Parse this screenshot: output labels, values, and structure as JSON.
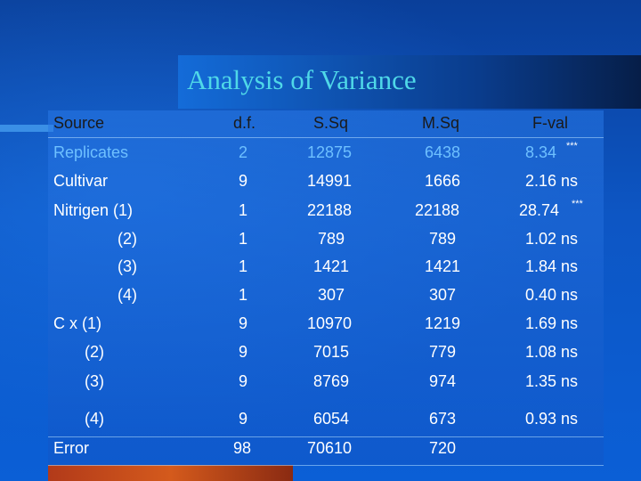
{
  "title": "Analysis of Variance",
  "columns": [
    "Source",
    "d.f.",
    "S.Sq",
    "M.Sq",
    "F-val"
  ],
  "rows": [
    {
      "source": "Replicates",
      "df": "2",
      "ss": "12875",
      "ms": "6438",
      "f": "8.34",
      "sig": "***"
    },
    {
      "source": "Cultivar",
      "df": "9",
      "ss": "14991",
      "ms": "1666",
      "f": "2.16 ns",
      "sig": ""
    },
    {
      "source": "Nitrigen (1)",
      "df": "1",
      "ss": "22188",
      "ms": "22188",
      "f": "28.74",
      "sig": "***"
    },
    {
      "source": "(2)",
      "df": "1",
      "ss": "789",
      "ms": "789",
      "f": "1.02 ns",
      "sig": ""
    },
    {
      "source": "(3)",
      "df": "1",
      "ss": "1421",
      "ms": "1421",
      "f": "1.84 ns",
      "sig": ""
    },
    {
      "source": "(4)",
      "df": "1",
      "ss": "307",
      "ms": "307",
      "f": "0.40 ns",
      "sig": ""
    },
    {
      "source": "C x (1)",
      "df": "9",
      "ss": "10970",
      "ms": "1219",
      "f": "1.69 ns",
      "sig": ""
    },
    {
      "source": "(2)",
      "df": "9",
      "ss": "7015",
      "ms": "779",
      "f": "1.08 ns",
      "sig": ""
    },
    {
      "source": "(3)",
      "df": "9",
      "ss": "8769",
      "ms": "974",
      "f": "1.35 ns",
      "sig": ""
    },
    {
      "source": "(4)",
      "df": "9",
      "ss": "6054",
      "ms": "673",
      "f": "0.93 ns",
      "sig": ""
    },
    {
      "source": "Error",
      "df": "98",
      "ss": "70610",
      "ms": "720",
      "f": "",
      "sig": ""
    }
  ]
}
